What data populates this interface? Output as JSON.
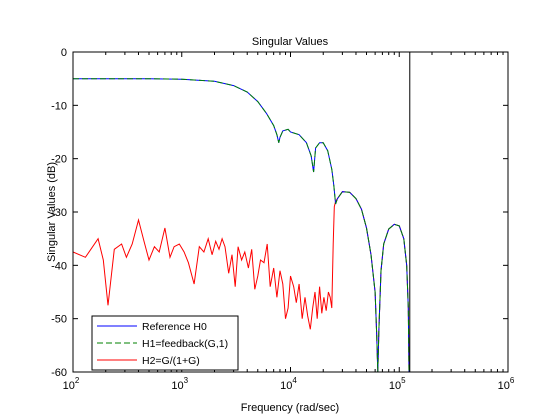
{
  "chart_data": {
    "type": "line",
    "title": "Singular Values",
    "xlabel": "Frequency (rad/sec)",
    "ylabel": "Singular Values (dB)",
    "xscale": "log",
    "xlim": [
      100,
      1000000
    ],
    "ylim": [
      -60,
      0
    ],
    "x_ticks": [
      {
        "value": 100,
        "base": "10",
        "exp": "2"
      },
      {
        "value": 1000,
        "base": "10",
        "exp": "3"
      },
      {
        "value": 10000,
        "base": "10",
        "exp": "4"
      },
      {
        "value": 100000,
        "base": "10",
        "exp": "5"
      },
      {
        "value": 1000000,
        "base": "10",
        "exp": "6"
      }
    ],
    "y_ticks": [
      {
        "value": 0,
        "label": "0"
      },
      {
        "value": -10,
        "label": "-10"
      },
      {
        "value": -20,
        "label": "-20"
      },
      {
        "value": -30,
        "label": "-30"
      },
      {
        "value": -40,
        "label": "-40"
      },
      {
        "value": -50,
        "label": "-50"
      },
      {
        "value": -60,
        "label": "-60"
      }
    ],
    "grid": false,
    "legend_position": "bottom-left",
    "vertical_line_x": 125000,
    "series": [
      {
        "name": "Reference H0",
        "color": "#0000ff",
        "dash": "solid",
        "points": [
          [
            100,
            -5
          ],
          [
            500,
            -5
          ],
          [
            1000,
            -5.1
          ],
          [
            2000,
            -5.5
          ],
          [
            3000,
            -6.3
          ],
          [
            4000,
            -7.5
          ],
          [
            5000,
            -9.3
          ],
          [
            6000,
            -11.5
          ],
          [
            7000,
            -13.8
          ],
          [
            7500,
            -15.5
          ],
          [
            7800,
            -17
          ],
          [
            8000,
            -16
          ],
          [
            8500,
            -14.8
          ],
          [
            9500,
            -14.5
          ],
          [
            10000,
            -15
          ],
          [
            12000,
            -15.5
          ],
          [
            14000,
            -17
          ],
          [
            15500,
            -19.5
          ],
          [
            16300,
            -22.5
          ],
          [
            17000,
            -18
          ],
          [
            18500,
            -17
          ],
          [
            20000,
            -17
          ],
          [
            22000,
            -18.5
          ],
          [
            24000,
            -22
          ],
          [
            25000,
            -25
          ],
          [
            26000,
            -28.5
          ],
          [
            27000,
            -27.5
          ],
          [
            30000,
            -26.2
          ],
          [
            35000,
            -26.3
          ],
          [
            40000,
            -27.5
          ],
          [
            45000,
            -29.5
          ],
          [
            50000,
            -33
          ],
          [
            55000,
            -38
          ],
          [
            60000,
            -45
          ],
          [
            62000,
            -53
          ],
          [
            63500,
            -60
          ],
          [
            65000,
            -52
          ],
          [
            68000,
            -41
          ],
          [
            72000,
            -36
          ],
          [
            80000,
            -33.2
          ],
          [
            90000,
            -32.3
          ],
          [
            100000,
            -32.6
          ],
          [
            110000,
            -35
          ],
          [
            117000,
            -40
          ],
          [
            121000,
            -48
          ],
          [
            123000,
            -60
          ],
          [
            125000,
            -60
          ]
        ]
      },
      {
        "name": "H1=feedback(G,1)",
        "color": "#008000",
        "dash": "dashed",
        "points": [
          [
            100,
            -5
          ],
          [
            500,
            -5
          ],
          [
            1000,
            -5.1
          ],
          [
            2000,
            -5.5
          ],
          [
            3000,
            -6.3
          ],
          [
            4000,
            -7.5
          ],
          [
            5000,
            -9.3
          ],
          [
            6000,
            -11.5
          ],
          [
            7000,
            -13.8
          ],
          [
            7500,
            -15.5
          ],
          [
            7800,
            -17
          ],
          [
            8000,
            -16
          ],
          [
            8500,
            -14.8
          ],
          [
            9500,
            -14.5
          ],
          [
            10000,
            -15
          ],
          [
            12000,
            -15.5
          ],
          [
            14000,
            -17
          ],
          [
            15500,
            -19.5
          ],
          [
            16300,
            -22.5
          ],
          [
            17000,
            -18
          ],
          [
            18500,
            -17
          ],
          [
            20000,
            -17
          ],
          [
            22000,
            -18.5
          ],
          [
            24000,
            -22
          ],
          [
            25000,
            -25
          ],
          [
            26000,
            -28.5
          ],
          [
            27000,
            -27.5
          ],
          [
            30000,
            -26.2
          ],
          [
            35000,
            -26.3
          ],
          [
            40000,
            -27.5
          ],
          [
            45000,
            -29.5
          ],
          [
            50000,
            -33
          ],
          [
            55000,
            -38
          ],
          [
            60000,
            -45
          ],
          [
            62000,
            -53
          ],
          [
            63500,
            -60
          ],
          [
            65000,
            -52
          ],
          [
            68000,
            -41
          ],
          [
            72000,
            -36
          ],
          [
            80000,
            -33.2
          ],
          [
            90000,
            -32.3
          ],
          [
            100000,
            -32.6
          ],
          [
            110000,
            -35
          ],
          [
            117000,
            -40
          ],
          [
            121000,
            -48
          ],
          [
            123000,
            -60
          ],
          [
            125000,
            -60
          ]
        ]
      },
      {
        "name": "H2=G/(1+G)",
        "color": "#ff0000",
        "dash": "solid",
        "points": [
          [
            100,
            -37.5
          ],
          [
            130,
            -38.5
          ],
          [
            170,
            -35
          ],
          [
            190,
            -39
          ],
          [
            210,
            -47.5
          ],
          [
            240,
            -37
          ],
          [
            280,
            -36
          ],
          [
            310,
            -38.5
          ],
          [
            350,
            -36
          ],
          [
            400,
            -31.5
          ],
          [
            450,
            -35.5
          ],
          [
            500,
            -39
          ],
          [
            560,
            -36.5
          ],
          [
            620,
            -37.5
          ],
          [
            700,
            -33
          ],
          [
            780,
            -38.5
          ],
          [
            850,
            -36.5
          ],
          [
            950,
            -36
          ],
          [
            1050,
            -37.5
          ],
          [
            1150,
            -39.5
          ],
          [
            1300,
            -43.5
          ],
          [
            1450,
            -36.5
          ],
          [
            1600,
            -37.5
          ],
          [
            1750,
            -35
          ],
          [
            1900,
            -38
          ],
          [
            2050,
            -35.5
          ],
          [
            2200,
            -37
          ],
          [
            2350,
            -35
          ],
          [
            2500,
            -36.5
          ],
          [
            2700,
            -41.5
          ],
          [
            2900,
            -38
          ],
          [
            3100,
            -44
          ],
          [
            3300,
            -36.5
          ],
          [
            3550,
            -39
          ],
          [
            3800,
            -37.5
          ],
          [
            4100,
            -40.5
          ],
          [
            4400,
            -37
          ],
          [
            4700,
            -44.5
          ],
          [
            5000,
            -42
          ],
          [
            5300,
            -39
          ],
          [
            5700,
            -39.5
          ],
          [
            6100,
            -36
          ],
          [
            6500,
            -44
          ],
          [
            7000,
            -40.5
          ],
          [
            7500,
            -46
          ],
          [
            8000,
            -41
          ],
          [
            8500,
            -43.5
          ],
          [
            9000,
            -50
          ],
          [
            9500,
            -48
          ],
          [
            10000,
            -42
          ],
          [
            10700,
            -44
          ],
          [
            11300,
            -47
          ],
          [
            12000,
            -43.5
          ],
          [
            12800,
            -50
          ],
          [
            13600,
            -46
          ],
          [
            14400,
            -49.5
          ],
          [
            15200,
            -52
          ],
          [
            16000,
            -48
          ],
          [
            16800,
            -45
          ],
          [
            17600,
            -50
          ],
          [
            18500,
            -44
          ],
          [
            19400,
            -49
          ],
          [
            20300,
            -46
          ],
          [
            21300,
            -48.5
          ],
          [
            22300,
            -45
          ],
          [
            23200,
            -46
          ],
          [
            24000,
            -48
          ],
          [
            24700,
            -36
          ],
          [
            25300,
            -29
          ],
          [
            26000,
            -28
          ],
          [
            27000,
            -27.5
          ],
          [
            30000,
            -26.2
          ],
          [
            35000,
            -26.3
          ],
          [
            40000,
            -27.5
          ],
          [
            45000,
            -29.5
          ],
          [
            50000,
            -33
          ],
          [
            55000,
            -38
          ],
          [
            60000,
            -45
          ],
          [
            62000,
            -53
          ],
          [
            63500,
            -60
          ],
          [
            65000,
            -52
          ],
          [
            68000,
            -41
          ],
          [
            72000,
            -36
          ],
          [
            80000,
            -33.2
          ],
          [
            90000,
            -32.3
          ],
          [
            100000,
            -32.6
          ],
          [
            110000,
            -35
          ],
          [
            117000,
            -40
          ],
          [
            121000,
            -48
          ],
          [
            123000,
            -60
          ],
          [
            125000,
            -60
          ]
        ]
      }
    ]
  }
}
